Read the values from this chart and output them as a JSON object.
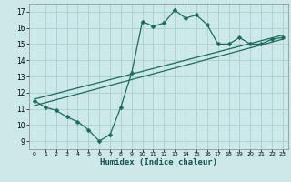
{
  "xlabel": "Humidex (Indice chaleur)",
  "ylabel": "",
  "xlim": [
    -0.5,
    23.5
  ],
  "ylim": [
    8.5,
    17.5
  ],
  "xticks": [
    0,
    1,
    2,
    3,
    4,
    5,
    6,
    7,
    8,
    9,
    10,
    11,
    12,
    13,
    14,
    15,
    16,
    17,
    18,
    19,
    20,
    21,
    22,
    23
  ],
  "yticks": [
    9,
    10,
    11,
    12,
    13,
    14,
    15,
    16,
    17
  ],
  "bg_color": "#cce8e8",
  "grid_color": "#aad0d0",
  "line_color": "#1a6b5a",
  "curve1_x": [
    0,
    1,
    2,
    3,
    4,
    5,
    6,
    7,
    8,
    9,
    10,
    11,
    12,
    13,
    14,
    15,
    16,
    17,
    18,
    19,
    20,
    21,
    22,
    23
  ],
  "curve1_y": [
    11.5,
    11.1,
    10.9,
    10.5,
    10.2,
    9.7,
    9.0,
    9.4,
    11.1,
    13.2,
    16.4,
    16.1,
    16.3,
    17.1,
    16.6,
    16.8,
    16.2,
    15.0,
    15.0,
    15.4,
    15.0,
    15.0,
    15.3,
    15.4
  ],
  "curve2_x": [
    0,
    23
  ],
  "curve2_y": [
    11.2,
    15.3
  ],
  "curve3_x": [
    0,
    23
  ],
  "curve3_y": [
    11.6,
    15.55
  ],
  "marker": "D",
  "markersize": 2.5
}
